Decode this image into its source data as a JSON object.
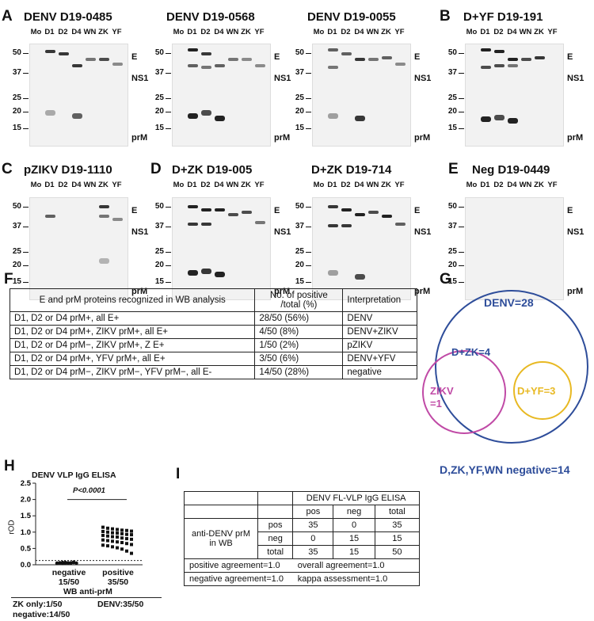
{
  "panels": [
    {
      "letter": "A",
      "title": "DENV D19-0485",
      "lx": 2,
      "ly": 10,
      "tx": 30,
      "ty": 13,
      "bx": 37,
      "by": 55,
      "bands": "A1"
    },
    {
      "letter": "",
      "title": "DENV D19-0568",
      "lx": 0,
      "ly": 0,
      "tx": 210,
      "ty": 13,
      "bx": 217,
      "by": 55,
      "bands": "A2"
    },
    {
      "letter": "",
      "title": "DENV D19-0055",
      "lx": 0,
      "ly": 0,
      "tx": 388,
      "ty": 13,
      "bx": 394,
      "by": 55,
      "bands": "A3"
    },
    {
      "letter": "B",
      "title": "D+YF D19-191",
      "lx": 555,
      "ly": 10,
      "tx": 585,
      "ty": 13,
      "bx": 587,
      "by": 55,
      "bands": "B"
    },
    {
      "letter": "C",
      "title": "pZIKV D19-1110",
      "lx": 2,
      "ly": 203,
      "tx": 30,
      "ty": 206,
      "bx": 37,
      "by": 249,
      "bands": "C"
    },
    {
      "letter": "D",
      "title": "D+ZK D19-005",
      "lx": 190,
      "ly": 203,
      "tx": 217,
      "ty": 206,
      "bx": 217,
      "by": 249,
      "bands": "D1"
    },
    {
      "letter": "",
      "title": "D+ZK D19-714",
      "lx": 0,
      "ly": 0,
      "tx": 393,
      "ty": 206,
      "bx": 394,
      "by": 249,
      "bands": "D2"
    },
    {
      "letter": "E",
      "title": "Neg D19-0449",
      "lx": 566,
      "ly": 203,
      "tx": 596,
      "ty": 206,
      "bx": 587,
      "by": 249,
      "bands": "E"
    }
  ],
  "lanes": [
    "Mo",
    "D1",
    "D2",
    "D4",
    "WN",
    "ZK",
    "YF"
  ],
  "markers": [
    "50-",
    "37-",
    "25-",
    "20-",
    "15-"
  ],
  "markers_plain": [
    "50",
    "37",
    "25",
    "20",
    "15"
  ],
  "sides": {
    "e": "E",
    "ns1": "NS1",
    "prm": "prM"
  },
  "panel_f": {
    "label": "F",
    "header": [
      "E and prM proteins recognized in WB analysis",
      "No. of positive /total (%)",
      "Interpretation"
    ],
    "rows": [
      [
        "D1, D2 or D4 prM+, all E+",
        "28/50 (56%)",
        "DENV"
      ],
      [
        "D1, D2 or D4 prM+, ZIKV prM+, all E+",
        "4/50 (8%)",
        "DENV+ZIKV"
      ],
      [
        "D1, D2 or D4 prM−, ZIKV prM+, Z E+",
        "1/50 (2%)",
        "pZIKV"
      ],
      [
        "D1, D2 or D4 prM+, YFV prM+, all E+",
        "3/50 (6%)",
        "DENV+YFV"
      ],
      [
        "D1, D2 or D4 prM−, ZIKV prM−, YFV prM−, all E-",
        "14/50 (28%)",
        "negative"
      ]
    ]
  },
  "panel_g": {
    "label": "G",
    "denv": "DENV=28",
    "dzk": "D+ZK=4",
    "zikv1": "ZIKV",
    "zikv2": "=1",
    "dyf": "D+YF=3",
    "negative": "D,ZK,YF,WN negative=14",
    "colors": {
      "denv": "#2e4d9a",
      "zikv": "#c04aa6",
      "yf": "#e8b923"
    }
  },
  "panel_h": {
    "label": "H",
    "title": "DENV VLP IgG ELISA",
    "ylabel": "rOD",
    "pvalue": "P<0.0001",
    "yticks": [
      "2.5",
      "2.0",
      "1.5",
      "1.0",
      "0.5",
      "0.0"
    ],
    "groups": [
      {
        "name": "negative",
        "count": "15/50"
      },
      {
        "name": "positive",
        "count": "35/50"
      }
    ],
    "xgroup": "WB anti-prM",
    "foot1": "ZK only:1/50",
    "foot2": "negative:14/50",
    "foot3": "DENV:35/50"
  },
  "chart_data": {
    "type": "scatter",
    "title": "DENV VLP IgG ELISA",
    "ylabel": "rOD",
    "xlabel": "WB anti-prM",
    "categories": [
      "negative",
      "positive"
    ],
    "ylim": [
      0,
      2.5
    ],
    "cutoff": 0.13,
    "series": [
      {
        "name": "negative",
        "values": [
          0.05,
          0.06,
          0.04,
          0.07,
          0.05,
          0.06,
          0.08,
          0.05,
          0.04,
          0.06,
          0.07,
          0.05,
          0.06,
          0.05,
          0.07
        ]
      },
      {
        "name": "positive",
        "values": [
          1.15,
          1.12,
          1.1,
          1.08,
          1.06,
          1.05,
          1.03,
          1.02,
          1.0,
          0.98,
          0.97,
          0.95,
          0.93,
          0.92,
          0.9,
          0.88,
          0.86,
          0.85,
          0.82,
          0.8,
          0.78,
          0.76,
          0.74,
          0.72,
          0.7,
          0.68,
          0.65,
          0.62,
          0.6,
          0.58,
          0.55,
          0.52,
          0.48,
          0.42,
          0.35
        ]
      }
    ]
  },
  "panel_i": {
    "label": "I",
    "header": "DENV FL-VLP IgG ELISA",
    "cols": [
      "pos",
      "neg",
      "total"
    ],
    "rowhead": "anti-DENV prM in WB",
    "rows": [
      [
        "pos",
        "35",
        "0",
        "35"
      ],
      [
        "neg",
        "0",
        "15",
        "15"
      ],
      [
        "total",
        "35",
        "15",
        "50"
      ]
    ],
    "s1": "positive agreement=1.0",
    "s2": "overall agreement=1.0",
    "s3": "negative agreement=1.0",
    "s4": "kappa assessment=1.0"
  }
}
